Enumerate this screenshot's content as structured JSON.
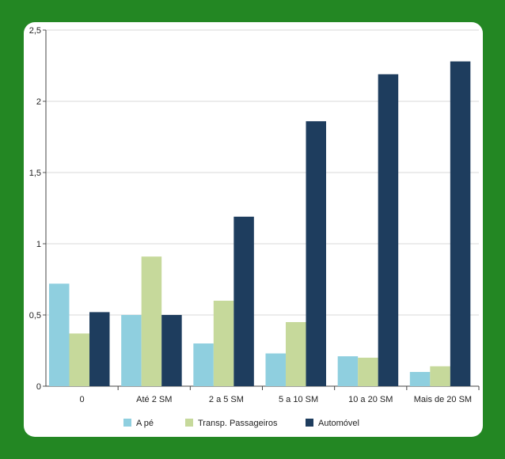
{
  "chart_data": {
    "type": "bar",
    "title": "",
    "xlabel": "",
    "ylabel": "",
    "ylim": [
      0,
      2.5
    ],
    "yticks": [
      "0",
      "0,5",
      "1",
      "1,5",
      "2",
      "2,5"
    ],
    "categories": [
      "0",
      "Até 2 SM",
      "2 a 5 SM",
      "5 a 10 SM",
      "10 a 20 SM",
      "Mais de 20 SM"
    ],
    "series": [
      {
        "name": "A pé",
        "color": "#8fcfdf",
        "values": [
          0.72,
          0.5,
          0.3,
          0.23,
          0.21,
          0.1
        ]
      },
      {
        "name": "Transp. Passageiros",
        "color": "#c6d99b",
        "values": [
          0.37,
          0.91,
          0.6,
          0.45,
          0.2,
          0.14
        ]
      },
      {
        "name": "Automóvel",
        "color": "#1e3d5e",
        "values": [
          0.52,
          0.5,
          1.19,
          1.86,
          2.19,
          2.28
        ]
      }
    ],
    "grid": true,
    "legend_position": "bottom"
  }
}
